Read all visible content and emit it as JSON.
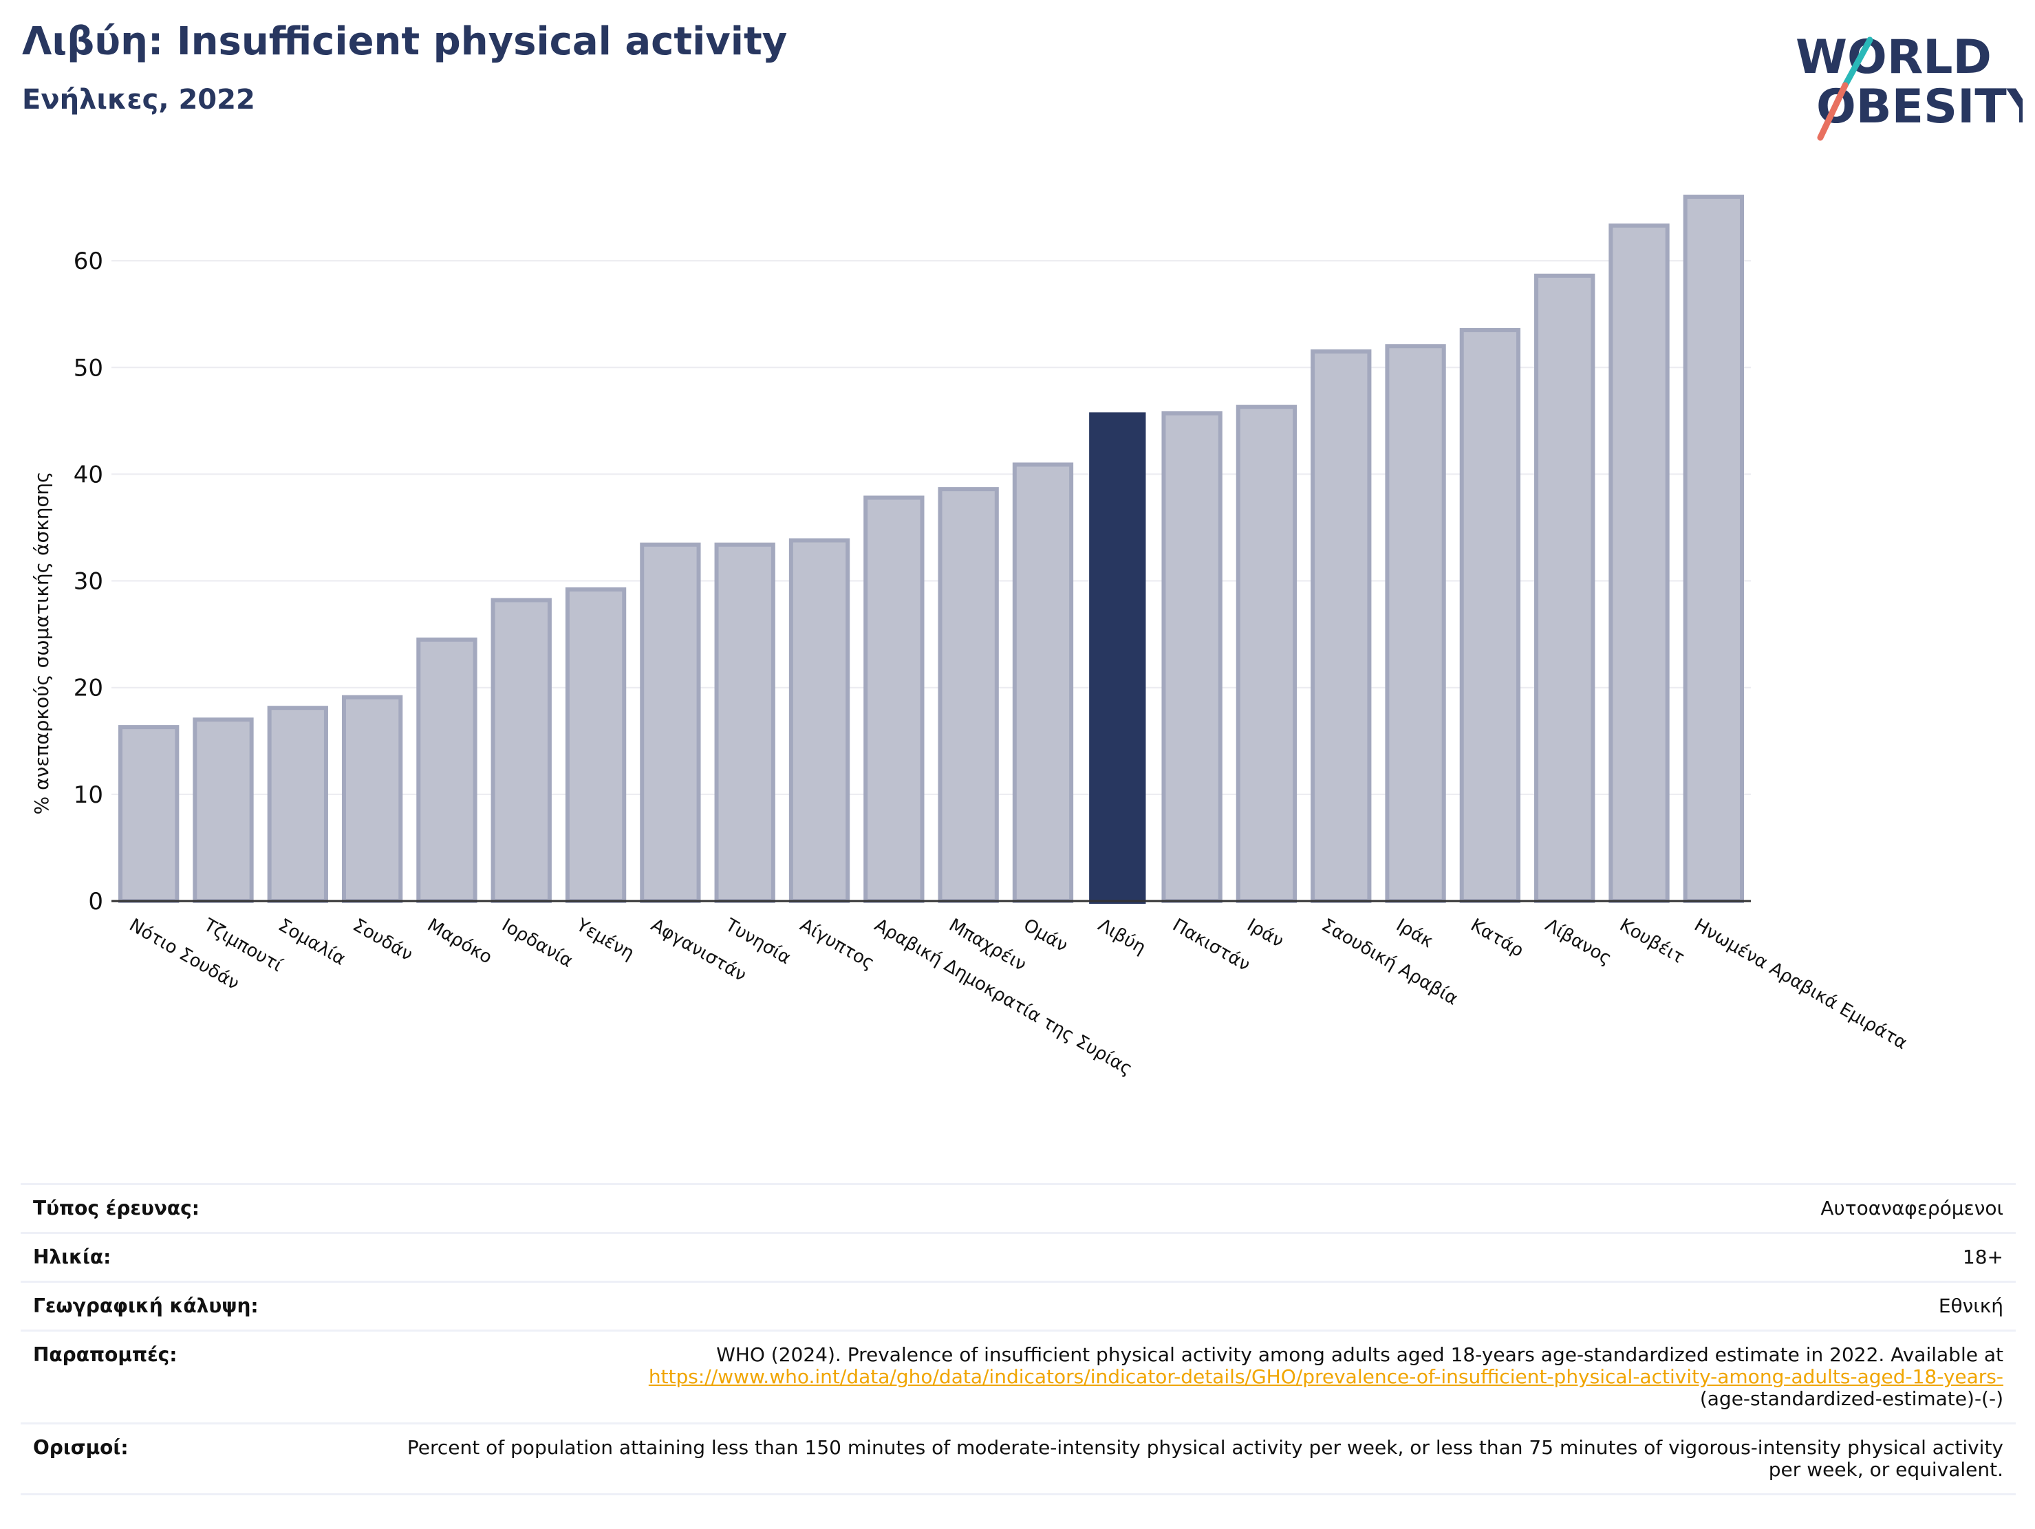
{
  "header": {
    "title": "Λιβύη: Insufficient physical activity",
    "subtitle": "Ενήλικες, 2022"
  },
  "logo": {
    "line1": "WORLD",
    "line2": "OBESITY"
  },
  "colors": {
    "highlight": "#283760",
    "bar_fill": "#bec1cf",
    "bar_stroke": "#a3a8be",
    "grid": "#ebebf0",
    "logo_teal": "#2ab8b8",
    "logo_coral": "#e8705f",
    "link": "#f0a500"
  },
  "chart_data": {
    "type": "bar",
    "ylabel": "% ανεπαρκούς σωματικής άσκησης",
    "ylim": [
      0,
      68
    ],
    "yticks": [
      0,
      10,
      20,
      30,
      40,
      50,
      60
    ],
    "grid": true,
    "highlight": "Λιβύη",
    "categories": [
      "Νότιο Σουδάν",
      "Τζιμπουτί",
      "Σομαλία",
      "Σουδάν",
      "Μαρόκο",
      "Ιορδανία",
      "Υεμένη",
      "Αφγανιστάν",
      "Τυνησία",
      "Αίγυπτος",
      "Αραβική Δημοκρατία της Συρίας",
      "Μπαχρέιν",
      "Ομάν",
      "Λιβύη",
      "Πακιστάν",
      "Ιράν",
      "Σαουδική Αραβία",
      "Ιράκ",
      "Κατάρ",
      "Λίβανος",
      "Κουβέιτ",
      "Ηνωμένα Αραβικά Εμιράτα"
    ],
    "values": [
      16.3,
      17.0,
      18.1,
      19.1,
      24.5,
      28.2,
      29.2,
      33.4,
      33.4,
      33.8,
      37.8,
      38.6,
      40.9,
      45.8,
      45.7,
      46.3,
      51.5,
      52.0,
      53.5,
      58.6,
      63.3,
      66.0
    ]
  },
  "info": {
    "rows": [
      {
        "label": "Τύπος έρευνας:",
        "value": "Αυτοαναφερόμενοι"
      },
      {
        "label": "Ηλικία:",
        "value": "18+"
      },
      {
        "label": "Γεωγραφική κάλυψη:",
        "value": "Εθνική"
      }
    ],
    "references": {
      "label": "Παραπομπές:",
      "text": "WHO (2024). Prevalence of insufficient physical activity among adults aged 18-years age-standardized estimate in 2022. Available at",
      "link": "https://www.who.int/data/gho/data/indicators/indicator-details/GHO/prevalence-of-insufficient-physical-activity-among-adults-aged-18-years-",
      "text_after": "(age-standardized-estimate)-(-)"
    },
    "definitions": {
      "label": "Ορισμοί:",
      "text": "Percent of population attaining less than 150 minutes of moderate-intensity physical activity per week, or less than 75 minutes of vigorous-intensity physical activity per week, or equivalent."
    }
  }
}
